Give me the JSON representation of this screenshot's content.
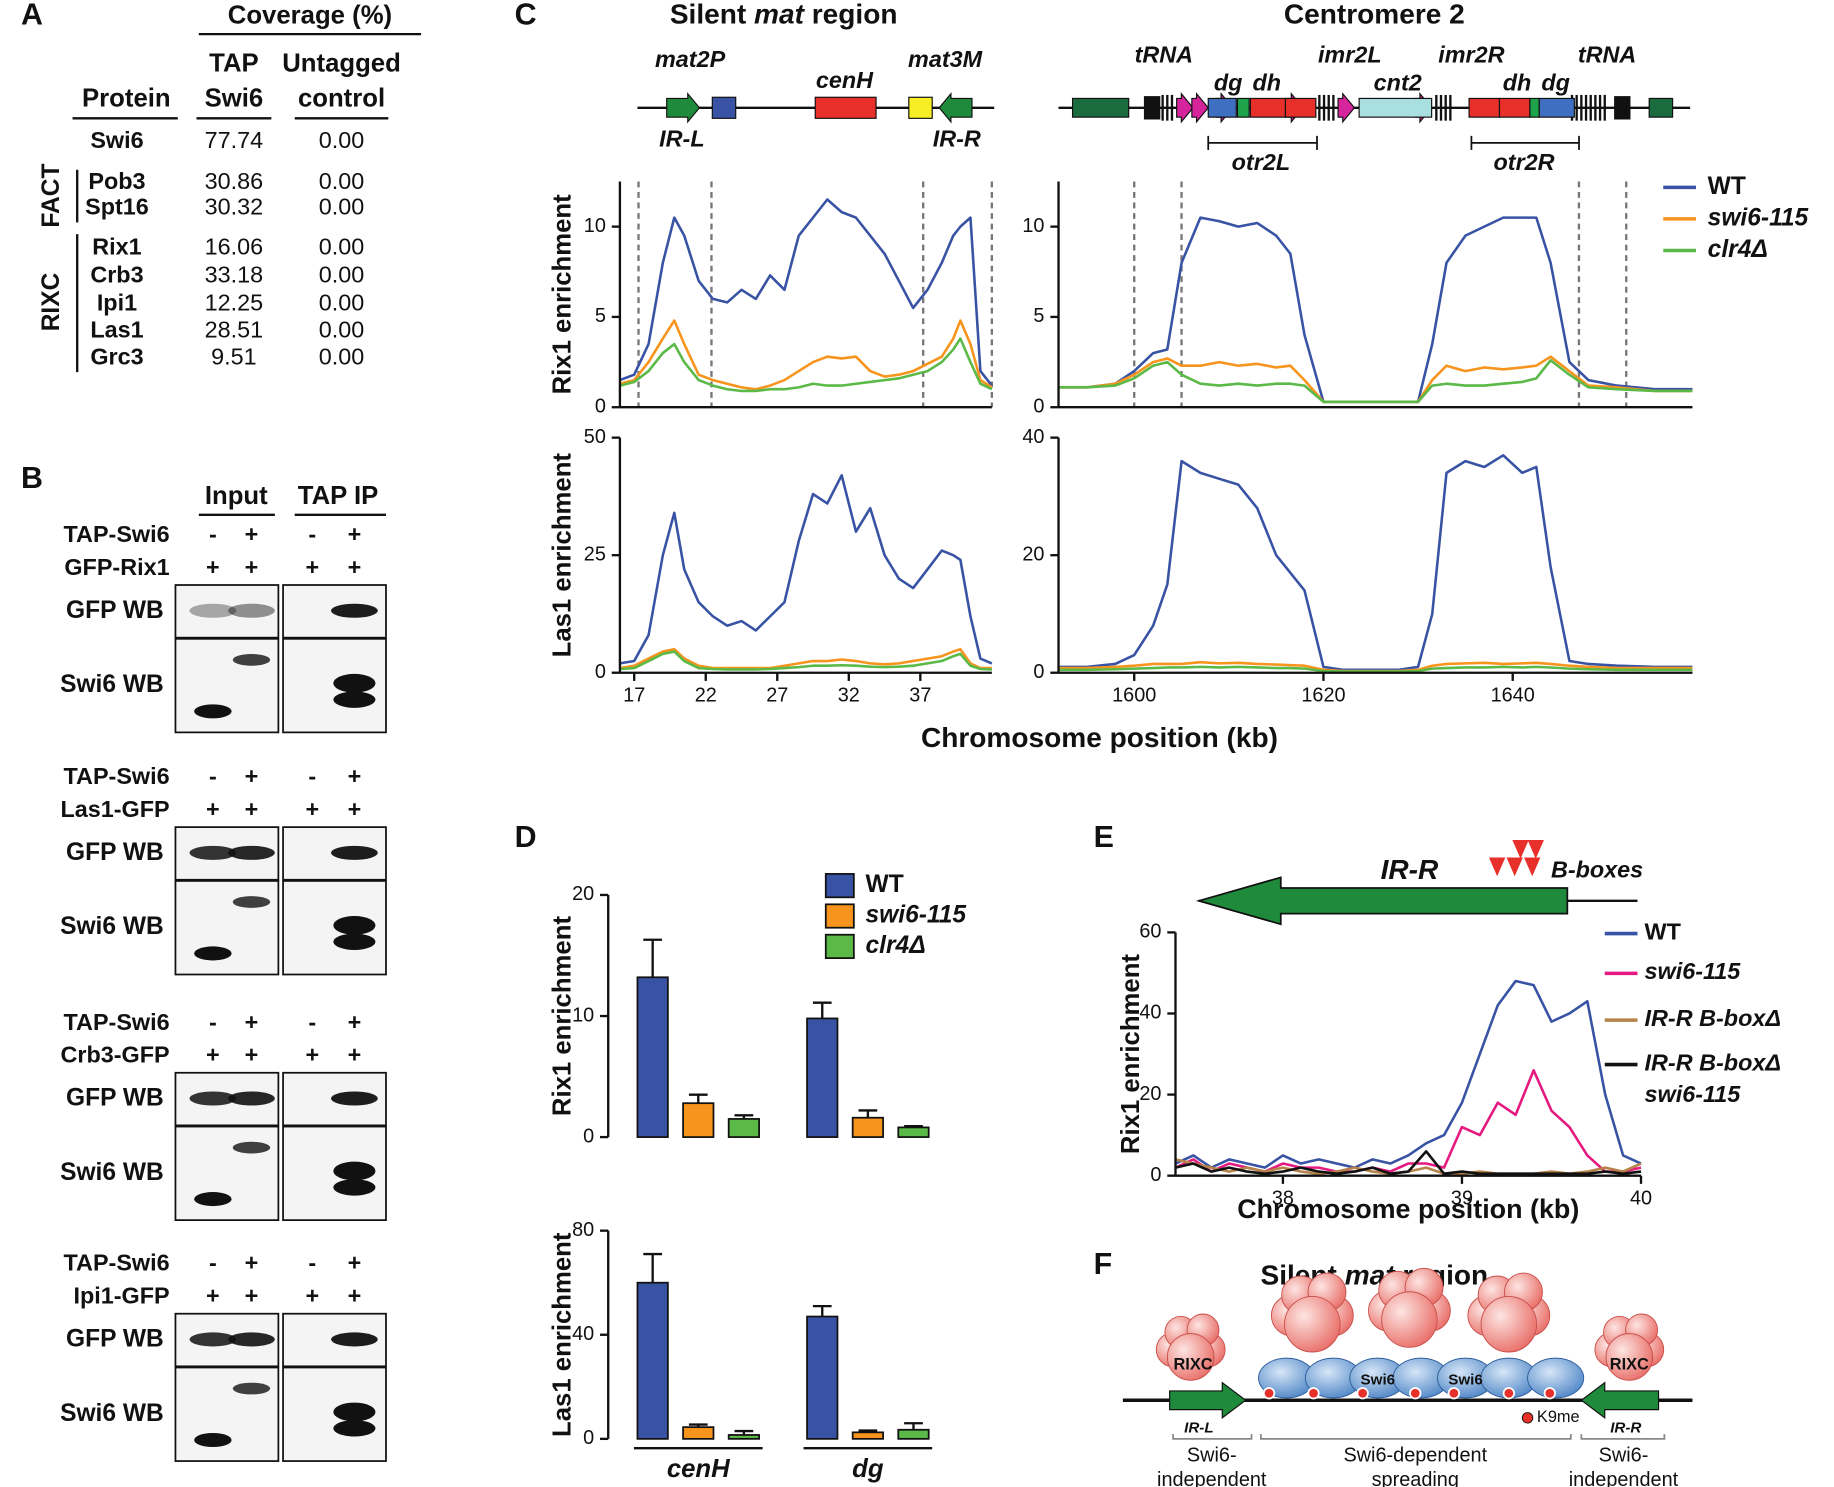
{
  "panel_labels": [
    "A",
    "B",
    "C",
    "D",
    "E",
    "F"
  ],
  "panel_a": {
    "header": "Coverage (%)",
    "columns": [
      [
        "Protein"
      ],
      [
        "TAP",
        "Swi6"
      ],
      [
        "Untagged",
        "control"
      ]
    ],
    "groups": [
      {
        "name": "FACT",
        "color": "#e8413a"
      },
      {
        "name": "RIXC",
        "color": "#2a7dc0"
      }
    ],
    "rows": [
      {
        "protein": "Swi6",
        "tap": "77.74",
        "control": "0.00",
        "color": "#2e9a48"
      },
      {
        "protein": "Pob3",
        "tap": "30.86",
        "control": "0.00",
        "color": "#e8413a"
      },
      {
        "protein": "Spt16",
        "tap": "30.32",
        "control": "0.00",
        "color": "#e8413a"
      },
      {
        "protein": "Rix1",
        "tap": "16.06",
        "control": "0.00",
        "color": "#2a7dc0"
      },
      {
        "protein": "Crb3",
        "tap": "33.18",
        "control": "0.00",
        "color": "#2a7dc0"
      },
      {
        "protein": "Ipi1",
        "tap": "12.25",
        "control": "0.00",
        "color": "#2a7dc0"
      },
      {
        "protein": "Las1",
        "tap": "28.51",
        "control": "0.00",
        "color": "#2a7dc0"
      },
      {
        "protein": "Grc3",
        "tap": "9.51",
        "control": "0.00",
        "color": "#2a7dc0"
      }
    ]
  },
  "panel_b": {
    "columns": [
      "Input",
      "TAP IP"
    ],
    "blocks": [
      {
        "rows": [
          {
            "label": "TAP-Swi6",
            "marks": [
              "-",
              "+",
              "-",
              "+"
            ]
          },
          {
            "label": "GFP-Rix1",
            "marks": [
              "+",
              "+",
              "+",
              "+"
            ]
          }
        ],
        "blots": [
          "GFP WB",
          "Swi6 WB"
        ]
      },
      {
        "rows": [
          {
            "label": "TAP-Swi6",
            "marks": [
              "-",
              "+",
              "-",
              "+"
            ]
          },
          {
            "label": "Las1-GFP",
            "marks": [
              "+",
              "+",
              "+",
              "+"
            ]
          }
        ],
        "blots": [
          "GFP WB",
          "Swi6 WB"
        ]
      },
      {
        "rows": [
          {
            "label": "TAP-Swi6",
            "marks": [
              "-",
              "+",
              "-",
              "+"
            ]
          },
          {
            "label": "Crb3-GFP",
            "marks": [
              "+",
              "+",
              "+",
              "+"
            ]
          }
        ],
        "blots": [
          "GFP WB",
          "Swi6 WB"
        ]
      },
      {
        "rows": [
          {
            "label": "TAP-Swi6",
            "marks": [
              "-",
              "+",
              "-",
              "+"
            ]
          },
          {
            "label": "Ipi1-GFP",
            "marks": [
              "+",
              "+",
              "+",
              "+"
            ]
          }
        ],
        "blots": [
          "GFP WB",
          "Swi6 WB"
        ]
      }
    ]
  },
  "panel_c": {
    "titles": [
      [
        "Silent ",
        "mat",
        " region"
      ],
      [
        "Centromere 2"
      ]
    ],
    "map_labels": [
      "mat2P",
      "cenH",
      "mat3M",
      "IR-L",
      "IR-R",
      "tRNA",
      "dg",
      "dh",
      "imr2L",
      "cnt2",
      "imr2R",
      "dh",
      "dg",
      "tRNA",
      "otr2L",
      "otr2R"
    ],
    "x_label": "Chromosome position (kb)"
  },
  "panel_e": {
    "element": "IR-R",
    "motif": "B-boxes"
  },
  "panel_f": {
    "title": [
      "Silent ",
      "mat",
      " region"
    ],
    "complex_labels": [
      "RIXC",
      "RIXC"
    ],
    "protein_labels": [
      "Swi6",
      "Swi6"
    ],
    "element_labels": [
      "IR-L",
      "IR-R"
    ],
    "mark_label": "K9me",
    "region_labels": [
      [
        "Swi6-",
        "independent"
      ],
      [
        "Swi6-dependent",
        "spreading"
      ],
      [
        "Swi6-",
        "independent"
      ]
    ]
  },
  "chart_data": [
    {
      "type": "line",
      "ylabel": "Rix1 enrichment",
      "x": [
        16,
        17,
        18,
        19,
        19.8,
        20.5,
        21.5,
        22.5,
        23.5,
        24.5,
        25.5,
        26.5,
        27.5,
        28.5,
        29.5,
        30.5,
        31.5,
        32.5,
        33.5,
        34.5,
        35.5,
        36.5,
        37.5,
        38.5,
        39.3,
        39.8,
        40.5,
        41.2,
        42
      ],
      "xlim": [
        16,
        42
      ],
      "ylim": [
        0,
        12.5
      ],
      "yticks": [
        0,
        5,
        10
      ],
      "boundaries": [
        17.3,
        22.4,
        37.2,
        42
      ],
      "series": [
        {
          "name": "WT",
          "color": "#3953a4",
          "values": [
            1.5,
            1.8,
            3.5,
            8,
            10.5,
            9.5,
            7,
            6,
            5.8,
            6.5,
            6,
            7.3,
            6.5,
            9.5,
            10.5,
            11.5,
            10.8,
            10.5,
            9.5,
            8.5,
            7,
            5.5,
            6.5,
            8,
            9.5,
            10,
            10.5,
            2,
            1.2
          ]
        },
        {
          "name": "swi6-115",
          "color": "#f7941d",
          "values": [
            1.3,
            1.5,
            2.5,
            3.8,
            4.8,
            3.5,
            1.8,
            1.5,
            1.3,
            1.1,
            1.0,
            1.2,
            1.5,
            2.0,
            2.5,
            2.8,
            2.7,
            2.8,
            2.0,
            1.7,
            1.8,
            2.0,
            2.4,
            2.8,
            3.8,
            4.8,
            3.5,
            1.5,
            1.1
          ]
        },
        {
          "name": "clr4Δ",
          "color": "#5bb947",
          "values": [
            1.2,
            1.4,
            2.0,
            3.0,
            3.5,
            2.5,
            1.5,
            1.2,
            1.0,
            0.9,
            0.9,
            1.0,
            1.0,
            1.1,
            1.3,
            1.2,
            1.2,
            1.3,
            1.4,
            1.5,
            1.6,
            1.8,
            2.0,
            2.5,
            3.2,
            3.8,
            2.5,
            1.3,
            1.0
          ]
        }
      ]
    },
    {
      "type": "line",
      "x": [
        1592,
        1595,
        1598,
        1600,
        1602,
        1603.5,
        1605,
        1607,
        1609,
        1611,
        1613,
        1615,
        1616.5,
        1618,
        1620,
        1622,
        1625,
        1628,
        1630,
        1631.5,
        1633,
        1635,
        1637,
        1639,
        1641,
        1642.5,
        1644,
        1646,
        1648,
        1651,
        1655,
        1659
      ],
      "xlim": [
        1592,
        1659
      ],
      "ylim": [
        0,
        12.5
      ],
      "yticks": [
        0,
        5,
        10
      ],
      "boundaries": [
        1600,
        1605,
        1647,
        1652
      ],
      "series": [
        {
          "color": "#3953a4",
          "values": [
            1.1,
            1.1,
            1.3,
            2,
            3,
            3.2,
            8,
            10.5,
            10.3,
            10,
            10.2,
            9.5,
            8.5,
            4,
            0.3,
            0.3,
            0.3,
            0.3,
            0.3,
            3.5,
            8,
            9.5,
            10,
            10.5,
            10.5,
            10.5,
            8,
            2.5,
            1.5,
            1.2,
            1.0,
            1.0
          ]
        },
        {
          "color": "#f7941d",
          "values": [
            1.1,
            1.1,
            1.3,
            1.8,
            2.5,
            2.7,
            2.3,
            2.3,
            2.5,
            2.3,
            2.4,
            2.2,
            2.3,
            1.5,
            0.3,
            0.3,
            0.3,
            0.3,
            0.3,
            1.5,
            2.3,
            2.0,
            2.2,
            2.1,
            2.2,
            2.3,
            2.8,
            2.0,
            1.2,
            1.1,
            0.9,
            0.9
          ]
        },
        {
          "color": "#5bb947",
          "values": [
            1.1,
            1.1,
            1.2,
            1.6,
            2.3,
            2.5,
            1.8,
            1.3,
            1.2,
            1.3,
            1.2,
            1.3,
            1.3,
            1.2,
            0.3,
            0.3,
            0.3,
            0.3,
            0.3,
            1.2,
            1.3,
            1.2,
            1.2,
            1.3,
            1.4,
            1.6,
            2.6,
            1.8,
            1.1,
            1.0,
            0.9,
            0.9
          ]
        }
      ]
    },
    {
      "type": "line",
      "ylabel": "Las1 enrichment",
      "x": [
        16,
        17,
        18,
        19,
        19.8,
        20.5,
        21.5,
        22.5,
        23.5,
        24.5,
        25.5,
        26.5,
        27.5,
        28.5,
        29.5,
        30.5,
        31.5,
        32.5,
        33.5,
        34.5,
        35.5,
        36.5,
        37.5,
        38.5,
        39.3,
        39.8,
        40.5,
        41.2,
        42
      ],
      "xlim": [
        16,
        42
      ],
      "ylim": [
        0,
        50
      ],
      "yticks": [
        0,
        25,
        50
      ],
      "xticks": [
        17,
        22,
        27,
        32,
        37
      ],
      "series": [
        {
          "color": "#3953a4",
          "values": [
            2,
            2.5,
            8,
            25,
            34,
            22,
            15,
            12,
            10,
            11,
            9,
            12,
            15,
            28,
            38,
            36,
            42,
            30,
            35,
            25,
            20,
            18,
            22,
            26,
            25,
            24,
            12,
            3,
            2
          ]
        },
        {
          "color": "#f7941d",
          "values": [
            1,
            1.5,
            3,
            4.5,
            5,
            3,
            1.5,
            1,
            1,
            1,
            1,
            1,
            1.5,
            2,
            2.5,
            2.5,
            2.8,
            2.5,
            2,
            1.8,
            2,
            2.5,
            3,
            3.5,
            4.5,
            5,
            2,
            1,
            1
          ]
        },
        {
          "color": "#5bb947",
          "values": [
            0.8,
            1,
            2.5,
            4,
            4.5,
            2.5,
            1,
            0.8,
            0.7,
            0.7,
            0.7,
            0.8,
            1,
            1.2,
            1.5,
            1.5,
            1.6,
            1.5,
            1.3,
            1.2,
            1.3,
            1.5,
            2,
            2.5,
            3.5,
            4,
            1.5,
            0.8,
            0.7
          ]
        }
      ]
    },
    {
      "type": "line",
      "x": [
        1592,
        1595,
        1598,
        1600,
        1602,
        1603.5,
        1605,
        1607,
        1609,
        1611,
        1613,
        1615,
        1616.5,
        1618,
        1620,
        1622,
        1625,
        1628,
        1630,
        1631.5,
        1633,
        1635,
        1637,
        1639,
        1641,
        1642.5,
        1644,
        1646,
        1648,
        1651,
        1655,
        1659
      ],
      "xlim": [
        1592,
        1659
      ],
      "ylim": [
        0,
        40
      ],
      "yticks": [
        0,
        20,
        40
      ],
      "xticks": [
        1600,
        1620,
        1640
      ],
      "series": [
        {
          "color": "#3953a4",
          "values": [
            1,
            1,
            1.5,
            3,
            8,
            15,
            36,
            34,
            33,
            32,
            28,
            20,
            17,
            14,
            1,
            0.5,
            0.5,
            0.5,
            1,
            10,
            34,
            36,
            35,
            37,
            34,
            35,
            18,
            2,
            1.5,
            1.2,
            1,
            1
          ]
        },
        {
          "color": "#f7941d",
          "values": [
            0.8,
            0.8,
            1,
            1.2,
            1.5,
            1.5,
            1.5,
            1.8,
            1.6,
            1.7,
            1.5,
            1.4,
            1.3,
            1.2,
            0.5,
            0.3,
            0.3,
            0.3,
            0.5,
            1.2,
            1.5,
            1.6,
            1.7,
            1.5,
            1.6,
            1.7,
            1.5,
            1.2,
            1,
            0.8,
            0.8,
            0.8
          ]
        },
        {
          "color": "#5bb947",
          "values": [
            0.5,
            0.5,
            0.6,
            0.7,
            0.8,
            0.9,
            0.9,
            1,
            0.9,
            1,
            0.9,
            0.8,
            0.8,
            0.7,
            0.3,
            0.2,
            0.2,
            0.2,
            0.3,
            0.7,
            0.8,
            0.9,
            0.9,
            1,
            0.9,
            1,
            0.9,
            0.7,
            0.6,
            0.5,
            0.5,
            0.5
          ]
        }
      ]
    },
    {
      "type": "bar",
      "ylabel": "Rix1 enrichment",
      "ylim": [
        0,
        20
      ],
      "yticks": [
        0,
        10,
        20
      ],
      "series": [
        {
          "name": "WT",
          "color": "#3953a4",
          "values": [
            13.2,
            9.8
          ],
          "errors": [
            3.1,
            1.3
          ]
        },
        {
          "name": "swi6-115",
          "color": "#f7941d",
          "values": [
            2.8,
            1.6
          ],
          "errors": [
            0.7,
            0.6
          ]
        },
        {
          "name": "clr4Δ",
          "color": "#5bb947",
          "values": [
            1.5,
            0.8
          ],
          "errors": [
            0.3,
            0.1
          ]
        }
      ]
    },
    {
      "type": "bar",
      "ylabel": "Las1 enrichment",
      "categories": [
        "cenH",
        "dg"
      ],
      "ylim": [
        0,
        80
      ],
      "yticks": [
        0,
        40,
        80
      ],
      "series": [
        {
          "color": "#3953a4",
          "values": [
            60,
            47
          ],
          "errors": [
            11,
            4
          ]
        },
        {
          "color": "#f7941d",
          "values": [
            4.5,
            2.5
          ],
          "errors": [
            1,
            0.7
          ]
        },
        {
          "color": "#5bb947",
          "values": [
            1.5,
            3.5
          ],
          "errors": [
            1.5,
            2.5
          ]
        }
      ]
    },
    {
      "type": "line",
      "ylabel": "Rix1 enrichment",
      "xlabel": "Chromosome position (kb)",
      "x": [
        37.4,
        37.5,
        37.6,
        37.7,
        37.8,
        37.9,
        38,
        38.1,
        38.2,
        38.3,
        38.4,
        38.5,
        38.6,
        38.7,
        38.8,
        38.9,
        39,
        39.1,
        39.2,
        39.3,
        39.4,
        39.5,
        39.6,
        39.7,
        39.8,
        39.9,
        40
      ],
      "xlim": [
        37.4,
        40
      ],
      "ylim": [
        0,
        60
      ],
      "xticks": [
        38,
        39,
        40
      ],
      "yticks": [
        0,
        20,
        40,
        60
      ],
      "series": [
        {
          "name": "WT",
          "color": "#3953a4",
          "values": [
            3,
            5,
            2,
            4,
            3,
            2,
            5,
            3,
            4,
            3,
            2,
            4,
            3,
            5,
            8,
            10,
            18,
            30,
            42,
            48,
            47,
            38,
            40,
            43,
            20,
            5,
            3
          ]
        },
        {
          "name": "swi6-115",
          "color": "#e5197f",
          "values": [
            2,
            4,
            1,
            3,
            2,
            1,
            3,
            2,
            2,
            1,
            1,
            2,
            1,
            3,
            3,
            2,
            12,
            10,
            18,
            15,
            26,
            16,
            12,
            5,
            1,
            1,
            2
          ]
        },
        {
          "name": "IR-R B-boxΔ",
          "color": "#b68349",
          "values": [
            4,
            3,
            2,
            1,
            2,
            1,
            2,
            1,
            0.5,
            1,
            2,
            1,
            0.5,
            1,
            2,
            0.5,
            0.5,
            1,
            0.5,
            0.5,
            0.5,
            1,
            0.5,
            1,
            2,
            1,
            3
          ]
        },
        {
          "name": "IR-R B-boxΔ swi6-115",
          "color": "#111111",
          "values": [
            2,
            3,
            1,
            2,
            1,
            0.5,
            1,
            2,
            1,
            0.5,
            1,
            2,
            0.5,
            1,
            6,
            0.5,
            1,
            0.5,
            0.5,
            0.5,
            0.5,
            0.5,
            0.5,
            0.5,
            1,
            0.5,
            1
          ]
        }
      ]
    }
  ]
}
